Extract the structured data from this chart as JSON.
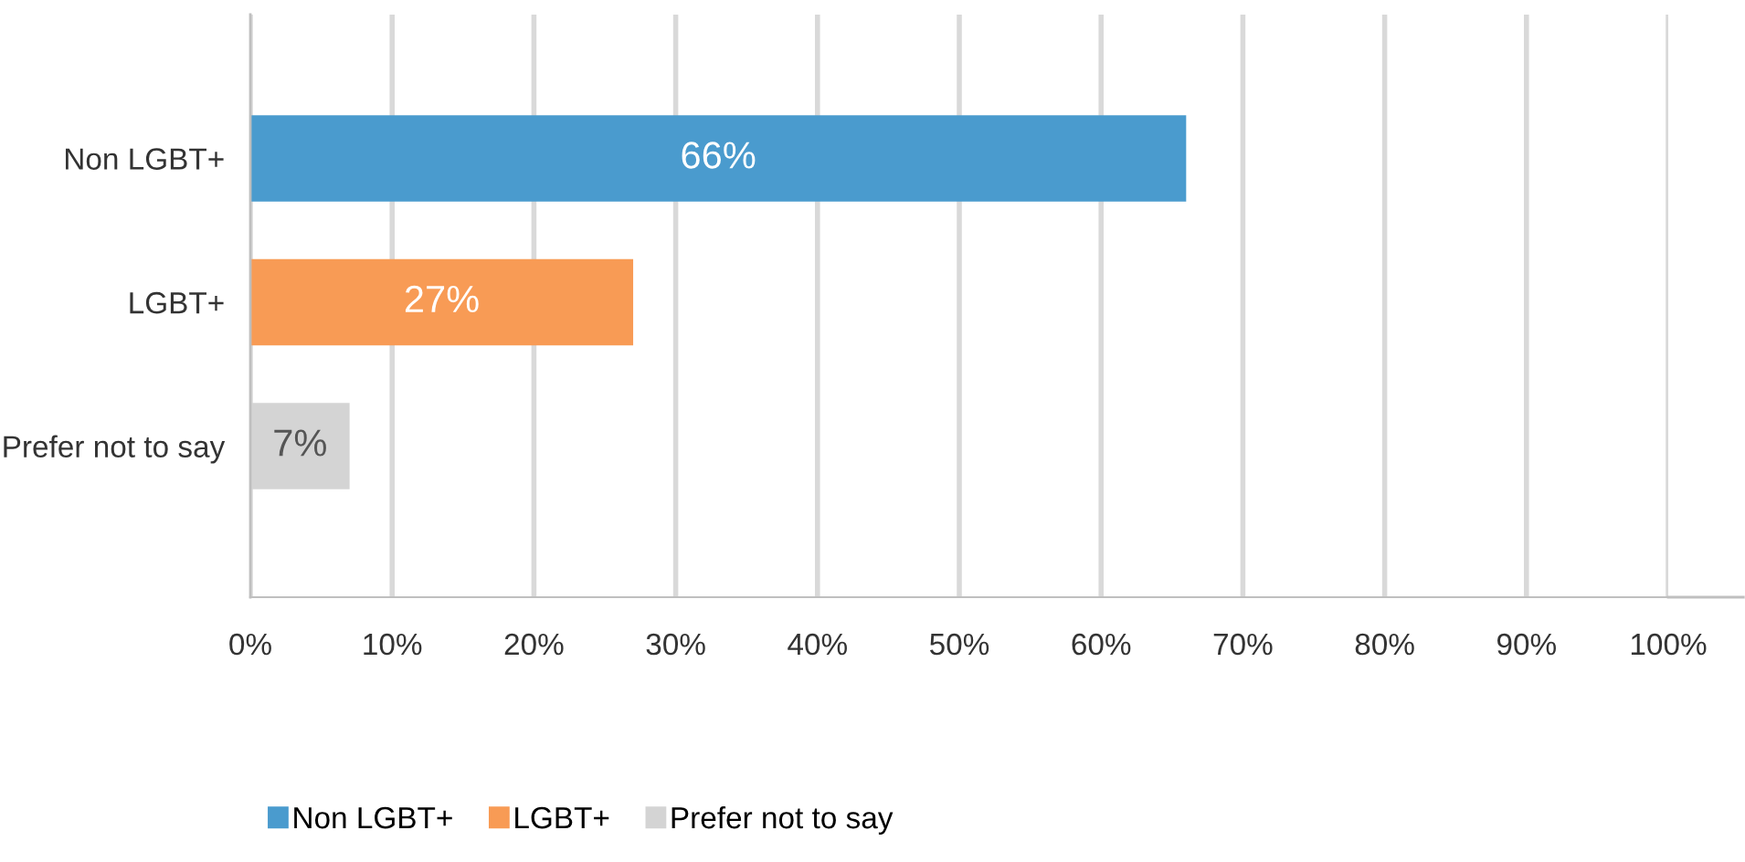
{
  "chart_data": {
    "type": "bar",
    "orientation": "horizontal",
    "categories": [
      "Non LGBT+",
      "LGBT+",
      "Prefer not to say"
    ],
    "series": [
      {
        "name": "Non LGBT+",
        "color": "#4a9bce",
        "values": [
          66,
          null,
          null
        ],
        "value_labels": [
          "66%",
          null,
          null
        ]
      },
      {
        "name": "LGBT+",
        "color": "#f89b55",
        "values": [
          null,
          27,
          null
        ],
        "value_labels": [
          null,
          "27%",
          null
        ]
      },
      {
        "name": "Prefer not to say",
        "color": "#d4d4d4",
        "values": [
          null,
          null,
          7
        ],
        "value_labels": [
          null,
          null,
          "7%"
        ]
      }
    ],
    "xlim": [
      0,
      100
    ],
    "xticks": [
      {
        "value": 0,
        "label": "0%"
      },
      {
        "value": 10,
        "label": "10%"
      },
      {
        "value": 20,
        "label": "20%"
      },
      {
        "value": 30,
        "label": "30%"
      },
      {
        "value": 40,
        "label": "40%"
      },
      {
        "value": 50,
        "label": "50%"
      },
      {
        "value": 60,
        "label": "60%"
      },
      {
        "value": 70,
        "label": "70%"
      },
      {
        "value": 80,
        "label": "80%"
      },
      {
        "value": 90,
        "label": "90%"
      },
      {
        "value": 100,
        "label": "100%"
      }
    ],
    "grid": "x",
    "legend": "bottom"
  }
}
